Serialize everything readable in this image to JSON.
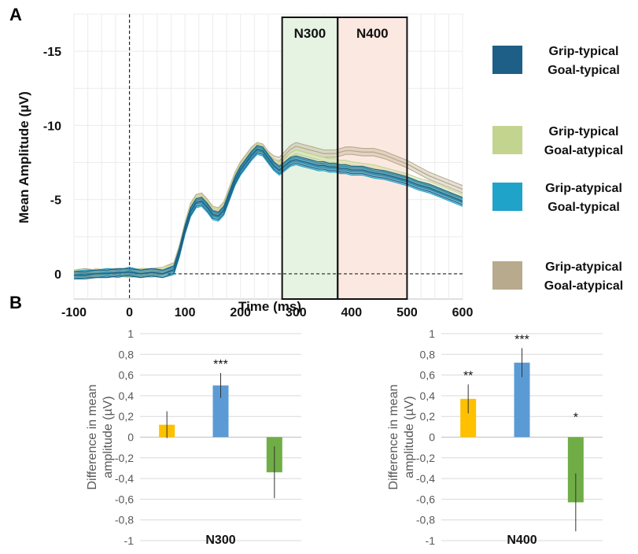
{
  "panel_a": {
    "label": "A"
  },
  "panel_b": {
    "label": "B"
  },
  "chart_data": [
    {
      "type": "line",
      "xlabel": "Time (ms)",
      "ylabel": "Mean Amplitude (µV)",
      "xlim": [
        -100,
        600
      ],
      "ylim": [
        1.7,
        -17.5
      ],
      "y_inverted": true,
      "x_ticks": [
        "-100",
        "0",
        "100",
        "200",
        "300",
        "400",
        "500",
        "600"
      ],
      "y_ticks": [
        "-15",
        "-10",
        "-5",
        "0"
      ],
      "y_tick_values": [
        -15,
        -10,
        -5,
        0
      ],
      "grid": true,
      "reference_lines": [
        {
          "axis": "x",
          "value": 0,
          "style": "dashed"
        },
        {
          "axis": "y",
          "value": 0,
          "style": "dashed"
        }
      ],
      "windows": [
        {
          "label": "N300",
          "start": 275,
          "end": 375,
          "color": "#e6f2e2"
        },
        {
          "label": "N400",
          "start": 375,
          "end": 500,
          "color": "#fbe9e1"
        }
      ],
      "x": [
        -100,
        -80,
        -60,
        -40,
        -20,
        0,
        20,
        40,
        60,
        80,
        90,
        100,
        110,
        120,
        130,
        140,
        150,
        160,
        170,
        180,
        190,
        200,
        210,
        220,
        230,
        240,
        250,
        260,
        270,
        280,
        290,
        300,
        310,
        320,
        330,
        340,
        350,
        360,
        370,
        380,
        390,
        400,
        420,
        440,
        460,
        480,
        500,
        520,
        540,
        560,
        580,
        600
      ],
      "series": [
        {
          "name": "Grip-typical\nGoal-typical",
          "color": "#1d5f86",
          "values": [
            0.1,
            0.1,
            0.0,
            0.0,
            -0.1,
            -0.1,
            0.0,
            -0.1,
            0.0,
            -0.3,
            -1.5,
            -3.0,
            -4.2,
            -4.8,
            -4.9,
            -4.5,
            -4.0,
            -3.9,
            -4.3,
            -5.3,
            -6.3,
            -7.0,
            -7.5,
            -8.0,
            -8.4,
            -8.3,
            -7.8,
            -7.3,
            -7.0,
            -7.3,
            -7.6,
            -7.7,
            -7.6,
            -7.5,
            -7.4,
            -7.3,
            -7.3,
            -7.2,
            -7.2,
            -7.1,
            -7.1,
            -7.0,
            -7.0,
            -6.8,
            -6.7,
            -6.5,
            -6.3,
            -6.0,
            -5.8,
            -5.5,
            -5.2,
            -4.9
          ]
        },
        {
          "name": "Grip-typical\nGoal-atypical",
          "color": "#c3d48e",
          "values": [
            0.0,
            0.1,
            -0.1,
            0.0,
            -0.1,
            0.0,
            -0.1,
            0.0,
            -0.2,
            -0.4,
            -1.6,
            -3.1,
            -4.4,
            -5.0,
            -5.1,
            -4.7,
            -4.2,
            -4.1,
            -4.5,
            -5.5,
            -6.5,
            -7.2,
            -7.7,
            -8.2,
            -8.5,
            -8.4,
            -7.9,
            -7.5,
            -7.3,
            -7.6,
            -7.9,
            -8.1,
            -8.0,
            -7.9,
            -7.8,
            -7.7,
            -7.6,
            -7.5,
            -7.5,
            -7.4,
            -7.4,
            -7.3,
            -7.2,
            -7.1,
            -6.9,
            -6.7,
            -6.5,
            -6.2,
            -6.0,
            -5.7,
            -5.4,
            -5.1
          ]
        },
        {
          "name": "Grip-atypical\nGoal-typical",
          "color": "#1fa3c8",
          "values": [
            0.1,
            0.0,
            0.0,
            -0.1,
            0.0,
            -0.2,
            0.0,
            -0.1,
            0.0,
            -0.2,
            -1.4,
            -2.9,
            -4.1,
            -4.7,
            -4.8,
            -4.4,
            -3.9,
            -3.8,
            -4.2,
            -5.2,
            -6.2,
            -6.9,
            -7.4,
            -7.9,
            -8.3,
            -8.2,
            -7.7,
            -7.2,
            -6.9,
            -7.2,
            -7.5,
            -7.6,
            -7.5,
            -7.4,
            -7.3,
            -7.2,
            -7.2,
            -7.1,
            -7.1,
            -7.0,
            -7.0,
            -6.9,
            -6.9,
            -6.7,
            -6.6,
            -6.4,
            -6.2,
            -5.9,
            -5.7,
            -5.4,
            -5.1,
            -4.8
          ]
        },
        {
          "name": "Grip-atypical\nGoal-atypical",
          "color": "#b8aa8c",
          "values": [
            0.0,
            -0.1,
            0.0,
            -0.1,
            -0.1,
            0.0,
            -0.1,
            -0.1,
            -0.2,
            -0.5,
            -1.7,
            -3.2,
            -4.5,
            -5.1,
            -5.2,
            -4.8,
            -4.3,
            -4.2,
            -4.6,
            -5.6,
            -6.6,
            -7.3,
            -7.8,
            -8.3,
            -8.6,
            -8.5,
            -8.0,
            -7.7,
            -7.6,
            -8.0,
            -8.4,
            -8.6,
            -8.5,
            -8.4,
            -8.3,
            -8.2,
            -8.1,
            -8.1,
            -8.1,
            -8.2,
            -8.3,
            -8.3,
            -8.2,
            -8.2,
            -8.0,
            -7.7,
            -7.4,
            -7.0,
            -6.6,
            -6.3,
            -6.0,
            -5.7
          ]
        }
      ]
    },
    {
      "type": "bar",
      "xlabel": "N300",
      "ylabel": "Difference in mean\namplitude (µV)",
      "ylim": [
        -1,
        1
      ],
      "y_ticks": [
        "1",
        "0,8",
        "0,6",
        "0,4",
        "0,2",
        "0",
        "-0,2",
        "-0,4",
        "-0,6",
        "-0,8",
        "-1"
      ],
      "y_tick_values": [
        1,
        0.8,
        0.6,
        0.4,
        0.2,
        0,
        -0.2,
        -0.4,
        -0.6,
        -0.8,
        -1
      ],
      "grid": true,
      "colors": [
        "#ffc000",
        "#5b9bd5",
        "#70ad47"
      ],
      "values": [
        0.12,
        0.5,
        -0.34
      ],
      "errors": [
        0.13,
        0.12,
        0.25
      ],
      "significance": [
        "",
        "***",
        ""
      ]
    },
    {
      "type": "bar",
      "xlabel": "N400",
      "ylabel": "Difference in mean\namplitude (µV)",
      "ylim": [
        -1,
        1
      ],
      "y_ticks": [
        "1",
        "0,8",
        "0,6",
        "0,4",
        "0,2",
        "0",
        "-0,2",
        "-0,4",
        "-0,6",
        "-0,8",
        "-1"
      ],
      "y_tick_values": [
        1,
        0.8,
        0.6,
        0.4,
        0.2,
        0,
        -0.2,
        -0.4,
        -0.6,
        -0.8,
        -1
      ],
      "grid": true,
      "colors": [
        "#ffc000",
        "#5b9bd5",
        "#70ad47"
      ],
      "values": [
        0.37,
        0.72,
        -0.63
      ],
      "errors": [
        0.14,
        0.14,
        0.28
      ],
      "significance": [
        "**",
        "***",
        "*"
      ]
    }
  ]
}
